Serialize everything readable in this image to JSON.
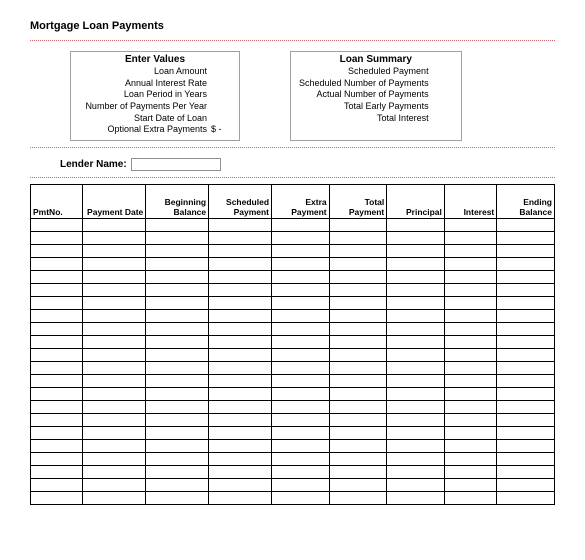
{
  "title": "Mortgage Loan Payments",
  "divider_color": "#cc6666",
  "enter_values": {
    "heading": "Enter Values",
    "rows": [
      {
        "label": "Loan Amount",
        "value": ""
      },
      {
        "label": "Annual Interest Rate",
        "value": ""
      },
      {
        "label": "Loan Period in Years",
        "value": ""
      },
      {
        "label": "Number of Payments Per Year",
        "value": ""
      },
      {
        "label": "Start Date of Loan",
        "value": ""
      },
      {
        "label": "Optional Extra Payments",
        "value": "$    -"
      }
    ]
  },
  "loan_summary": {
    "heading": "Loan Summary",
    "rows": [
      {
        "label": "Scheduled Payment",
        "value": ""
      },
      {
        "label": "Scheduled Number of Payments",
        "value": ""
      },
      {
        "label": "Actual Number of Payments",
        "value": ""
      },
      {
        "label": "Total Early Payments",
        "value": ""
      },
      {
        "label": "Total Interest",
        "value": ""
      }
    ]
  },
  "lender": {
    "label": "Lender Name:",
    "value": ""
  },
  "schedule": {
    "columns": [
      "PmtNo.",
      "Payment Date",
      "Beginning Balance",
      "Scheduled Payment",
      "Extra Payment",
      "Total Payment",
      "Principal",
      "Interest",
      "Ending Balance"
    ],
    "col_widths_pct": [
      10,
      12,
      12,
      12,
      11,
      11,
      11,
      10,
      11
    ],
    "blank_rows": 22
  }
}
